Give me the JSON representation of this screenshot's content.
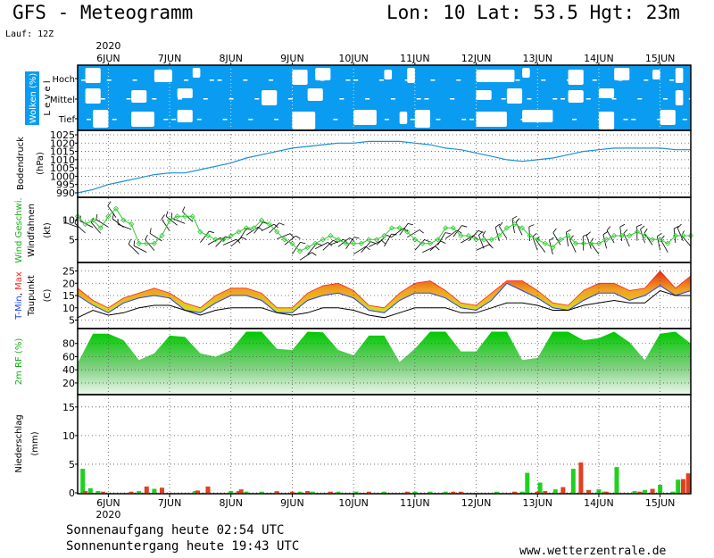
{
  "header": {
    "title": "GFS - Meteogramm",
    "location": "Lon: 10 Lat: 53.5 Hgt: 23m",
    "run": "Lauf: 12Z"
  },
  "footer": {
    "sunrise": "Sonnenaufgang heute 02:54 UTC",
    "sunset": "Sonnenuntergang heute 19:43 UTC",
    "site": "www.wetterzentrale.de"
  },
  "time_axis": {
    "year": "2020",
    "days": [
      "6JUN",
      "7JUN",
      "8JUN",
      "9JUN",
      "10JUN",
      "11JUN",
      "12JUN",
      "13JUN",
      "14JUN",
      "15JUN"
    ],
    "start_hour": 12,
    "end_hour": 252
  },
  "colors": {
    "cloud_bg": "#0a9cf0",
    "pressure": "#1a8fd6",
    "wind": "#2ecc2e",
    "tmax": "#ff2020",
    "tmin": "#2040ff",
    "dewpoint": "#000000",
    "rh": "#10d010",
    "precip_green": "#20d020",
    "precip_red": "#e04020"
  },
  "chart_data": [
    {
      "type": "heatmap",
      "ylabel": "Wolken (%)",
      "ylabel2": "L e v e l",
      "levels": [
        "Hoch",
        "Mittel",
        "Tief"
      ],
      "note": "white patches = clear sky",
      "clear_hoch": [
        [
          15,
          21
        ],
        [
          42,
          49
        ],
        [
          57,
          60
        ],
        [
          96,
          102
        ],
        [
          105,
          111
        ],
        [
          132,
          135
        ],
        [
          141,
          144
        ],
        [
          168,
          183
        ],
        [
          186,
          189
        ],
        [
          204,
          210
        ],
        [
          222,
          228
        ],
        [
          237,
          240
        ],
        [
          246,
          249
        ]
      ],
      "clear_mittel": [
        [
          15,
          21
        ],
        [
          33,
          39
        ],
        [
          51,
          57
        ],
        [
          84,
          90
        ],
        [
          102,
          108
        ],
        [
          168,
          174
        ],
        [
          180,
          186
        ],
        [
          204,
          210
        ],
        [
          216,
          222
        ],
        [
          246,
          249
        ]
      ],
      "clear_tief": [
        [
          18,
          24
        ],
        [
          33,
          42
        ],
        [
          51,
          57
        ],
        [
          96,
          105
        ],
        [
          120,
          129
        ],
        [
          138,
          141
        ],
        [
          144,
          150
        ],
        [
          168,
          180
        ],
        [
          186,
          198
        ],
        [
          216,
          222
        ],
        [
          240,
          246
        ]
      ]
    },
    {
      "type": "line",
      "ylabel": "Bodendruck",
      "unit": "(hPa)",
      "ylim": [
        990,
        1025
      ],
      "yticks": [
        990,
        995,
        1000,
        1005,
        1010,
        1015,
        1020,
        1025
      ],
      "x": [
        12,
        18,
        24,
        30,
        36,
        42,
        48,
        54,
        60,
        66,
        72,
        78,
        84,
        90,
        96,
        102,
        108,
        114,
        120,
        126,
        132,
        138,
        144,
        150,
        156,
        162,
        168,
        174,
        180,
        186,
        192,
        198,
        204,
        210,
        216,
        222,
        228,
        234,
        240,
        246,
        252
      ],
      "values": [
        990,
        992,
        995,
        997,
        999,
        1001,
        1002,
        1002,
        1004,
        1006,
        1008,
        1011,
        1013,
        1015,
        1017,
        1018,
        1019,
        1020,
        1020,
        1021,
        1021,
        1021,
        1020,
        1019,
        1017,
        1016,
        1014,
        1012,
        1010,
        1009,
        1010,
        1011,
        1013,
        1015,
        1016,
        1017,
        1017,
        1017,
        1017,
        1016,
        1016
      ]
    },
    {
      "type": "line",
      "ylabel": "Wind Geschwi.",
      "ylabel2": "Windfahnen",
      "unit": "(kt)",
      "ylim": [
        0,
        15
      ],
      "yticks": [
        5,
        10
      ],
      "x": [
        12,
        15,
        18,
        21,
        24,
        27,
        30,
        33,
        36,
        39,
        42,
        45,
        48,
        51,
        54,
        57,
        60,
        63,
        66,
        69,
        72,
        75,
        78,
        81,
        84,
        87,
        90,
        93,
        96,
        99,
        102,
        105,
        108,
        111,
        114,
        117,
        120,
        123,
        126,
        129,
        132,
        135,
        138,
        141,
        144,
        147,
        150,
        153,
        156,
        159,
        162,
        165,
        168,
        171,
        174,
        177,
        180,
        183,
        186,
        189,
        192,
        195,
        198,
        201,
        204,
        207,
        210,
        213,
        216,
        219,
        222,
        225,
        228,
        231,
        234,
        237,
        240,
        243,
        246,
        249,
        252
      ],
      "values": [
        11,
        9,
        10,
        8,
        11,
        13,
        10,
        9,
        4,
        4,
        4,
        6,
        10,
        11,
        11,
        11,
        7,
        6,
        5,
        5,
        6,
        7,
        8,
        8,
        10,
        9,
        7,
        5,
        4,
        2,
        3,
        4,
        5,
        6,
        5,
        4,
        4,
        4,
        5,
        5,
        6,
        8,
        8,
        7,
        5,
        4,
        4,
        5,
        8,
        8,
        6,
        6,
        5,
        5,
        5,
        6,
        8,
        9,
        8,
        6,
        5,
        4,
        3,
        5,
        6,
        4,
        4,
        4,
        4,
        5,
        6,
        6,
        6,
        7,
        6,
        5,
        5,
        4,
        6,
        6,
        6
      ]
    },
    {
      "type": "area",
      "ylabel_parts": [
        "T-Min",
        "Max"
      ],
      "ylabel2": "Taupunkt",
      "unit": "(C)",
      "ylim": [
        3,
        27
      ],
      "yticks": [
        5,
        10,
        15,
        20,
        25
      ],
      "x": [
        12,
        18,
        24,
        30,
        36,
        42,
        48,
        54,
        60,
        66,
        72,
        78,
        84,
        90,
        96,
        102,
        108,
        114,
        120,
        126,
        132,
        138,
        144,
        150,
        156,
        162,
        168,
        174,
        180,
        186,
        192,
        198,
        204,
        210,
        216,
        222,
        228,
        234,
        240,
        246,
        252
      ],
      "tmax": [
        18,
        13,
        10,
        14,
        16,
        18,
        16,
        12,
        10,
        15,
        18,
        18,
        16,
        10,
        10,
        16,
        19,
        20,
        17,
        11,
        10,
        16,
        20,
        21,
        17,
        12,
        11,
        16,
        21,
        21,
        17,
        12,
        11,
        17,
        20,
        20,
        17,
        18,
        25,
        18,
        23
      ],
      "tmin": [
        15,
        11,
        8,
        12,
        14,
        15,
        14,
        9,
        8,
        12,
        15,
        15,
        13,
        8,
        8,
        13,
        15,
        16,
        14,
        9,
        8,
        13,
        16,
        16,
        14,
        10,
        9,
        13,
        20,
        17,
        14,
        10,
        9,
        13,
        16,
        16,
        13,
        15,
        19,
        15,
        17
      ],
      "dewpoint": [
        6,
        9,
        7,
        8,
        10,
        11,
        11,
        9,
        7,
        9,
        10,
        10,
        10,
        8,
        7,
        8,
        10,
        10,
        9,
        7,
        6,
        8,
        10,
        10,
        10,
        8,
        8,
        10,
        12,
        12,
        11,
        9,
        9,
        11,
        12,
        13,
        12,
        12,
        17,
        15,
        15
      ]
    },
    {
      "type": "area",
      "ylabel": "2m RF (%)",
      "ylim": [
        5,
        100
      ],
      "yticks": [
        20,
        40,
        60,
        80
      ],
      "x": [
        12,
        18,
        24,
        30,
        36,
        42,
        48,
        54,
        60,
        66,
        72,
        78,
        84,
        90,
        96,
        102,
        108,
        114,
        120,
        126,
        132,
        138,
        144,
        150,
        156,
        162,
        168,
        174,
        180,
        186,
        192,
        198,
        204,
        210,
        216,
        222,
        228,
        234,
        240,
        246,
        252
      ],
      "values": [
        50,
        95,
        95,
        85,
        55,
        65,
        92,
        90,
        65,
        60,
        70,
        98,
        98,
        72,
        70,
        98,
        97,
        70,
        62,
        92,
        92,
        52,
        72,
        98,
        98,
        68,
        68,
        98,
        98,
        55,
        58,
        98,
        98,
        85,
        88,
        98,
        82,
        55,
        95,
        98,
        80
      ]
    },
    {
      "type": "bar",
      "ylabel": "Niederschlag",
      "unit": "(mm)",
      "ylim": [
        0,
        17
      ],
      "yticks": [
        0,
        5,
        10,
        15
      ],
      "series": [
        {
          "name": "",
          "color": "green",
          "x": [
            14,
            17,
            20,
            36,
            42,
            58,
            72,
            78,
            84,
            90,
            99,
            104,
            114,
            121,
            132,
            144,
            150,
            156,
            176,
            186,
            188,
            193,
            199,
            206,
            216,
            218,
            223,
            230,
            234,
            240,
            245,
            247
          ],
          "values": [
            4.2,
            0.8,
            0.3,
            0.3,
            0.7,
            0.3,
            0.3,
            0.2,
            0.2,
            0.3,
            0.2,
            0.2,
            0.2,
            0.2,
            0.2,
            0.2,
            0.2,
            0.2,
            0.2,
            0.2,
            3.5,
            1.8,
            0.6,
            4.2,
            0.6,
            0.2,
            4.5,
            0.3,
            0.5,
            1.4,
            0.2,
            2.3
          ]
        },
        {
          "name": "",
          "color": "red",
          "x": [
            15,
            22,
            33,
            39,
            45,
            59,
            63,
            75,
            76,
            90,
            96,
            102,
            111,
            126,
            141,
            159,
            162,
            183,
            192,
            195,
            202,
            209,
            212,
            219,
            232,
            237,
            249,
            251
          ],
          "values": [
            0.3,
            0.2,
            0.2,
            1.1,
            0.9,
            0.4,
            1.1,
            0.3,
            0.6,
            0.2,
            0.2,
            0.3,
            0.2,
            0.2,
            0.2,
            0.2,
            0.2,
            0.2,
            0.2,
            0.3,
            1.0,
            5.3,
            0.5,
            0.2,
            0.2,
            0.7,
            2.4,
            3.4
          ]
        }
      ]
    }
  ]
}
